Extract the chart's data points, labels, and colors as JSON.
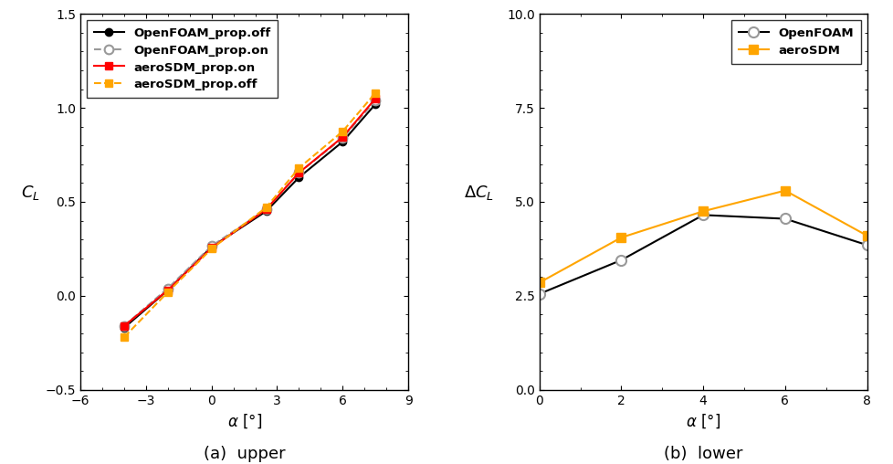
{
  "left": {
    "alpha": [
      -4,
      -2,
      0,
      2.5,
      4,
      6,
      7.5
    ],
    "openfoam_off": [
      -0.17,
      0.03,
      0.26,
      0.45,
      0.63,
      0.82,
      1.02
    ],
    "openfoam_on": [
      -0.16,
      0.04,
      0.265,
      0.46,
      0.655,
      0.84,
      1.04
    ],
    "aerosdm_on": [
      -0.16,
      0.03,
      0.255,
      0.46,
      0.655,
      0.845,
      1.05
    ],
    "aerosdm_off": [
      -0.22,
      0.02,
      0.25,
      0.47,
      0.68,
      0.875,
      1.08
    ],
    "ylabel": "$C_L$",
    "xlabel": "$\\alpha$ [°]",
    "caption": "(a)  upper",
    "xlim": [
      -6,
      9
    ],
    "ylim": [
      -0.5,
      1.5
    ],
    "xticks": [
      -6,
      -3,
      0,
      3,
      6,
      9
    ],
    "yticks": [
      -0.5,
      0.0,
      0.5,
      1.0,
      1.5
    ]
  },
  "right": {
    "alpha": [
      0,
      2,
      4,
      6,
      8
    ],
    "openfoam": [
      2.55,
      3.45,
      4.65,
      4.55,
      3.85
    ],
    "aerosdm": [
      2.85,
      4.05,
      4.75,
      5.3,
      4.1
    ],
    "ylabel": "$\\Delta C_L$",
    "xlabel": "$\\alpha$ [°]",
    "caption": "(b)  lower",
    "xlim": [
      0,
      8
    ],
    "ylim": [
      0,
      10
    ],
    "xticks": [
      0,
      2,
      4,
      6,
      8
    ],
    "yticks": [
      0,
      2.5,
      5.0,
      7.5,
      10.0
    ]
  },
  "color_black": "#000000",
  "color_orange": "#FFA500",
  "color_gray": "#999999",
  "color_red": "#FF0000"
}
